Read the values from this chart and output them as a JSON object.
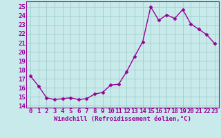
{
  "x": [
    0,
    1,
    2,
    3,
    4,
    5,
    6,
    7,
    8,
    9,
    10,
    11,
    12,
    13,
    14,
    15,
    16,
    17,
    18,
    19,
    20,
    21,
    22,
    23
  ],
  "y": [
    17.3,
    16.2,
    14.9,
    14.7,
    14.8,
    14.9,
    14.7,
    14.8,
    15.3,
    15.5,
    16.3,
    16.4,
    17.8,
    19.5,
    21.1,
    25.0,
    23.5,
    24.1,
    23.7,
    24.7,
    23.1,
    22.5,
    21.9,
    20.9
  ],
  "color": "#990099",
  "bg_color": "#c8eaea",
  "grid_color": "#a0cccc",
  "xlabel": "Windchill (Refroidissement éolien,°C)",
  "ylim": [
    13.8,
    25.6
  ],
  "yticks": [
    14,
    15,
    16,
    17,
    18,
    19,
    20,
    21,
    22,
    23,
    24,
    25
  ],
  "xticks": [
    0,
    1,
    2,
    3,
    4,
    5,
    6,
    7,
    8,
    9,
    10,
    11,
    12,
    13,
    14,
    15,
    16,
    17,
    18,
    19,
    20,
    21,
    22,
    23
  ],
  "xlabel_fontsize": 6.5,
  "tick_fontsize": 6.5,
  "marker": "D",
  "marker_size": 2.5,
  "line_width": 1.0
}
